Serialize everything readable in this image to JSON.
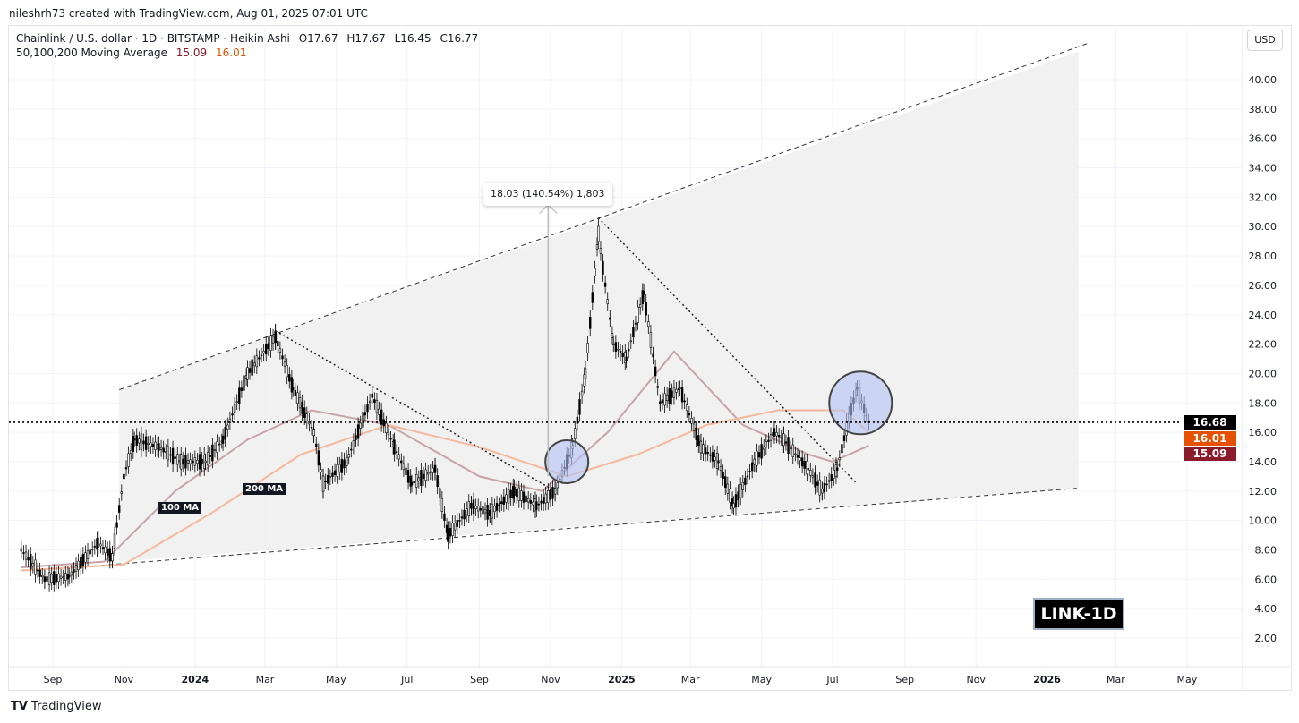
{
  "header": {
    "credit": "nileshrh73 created with TradingView.com, Aug 01, 2025 07:01 UTC",
    "symbol_line": "Chainlink / U.S. dollar · 1D · BITSTAMP · Heikin Ashi",
    "ohlc": {
      "open": "O17.67",
      "high": "H17.67",
      "low": "L16.45",
      "close": "C16.77"
    },
    "indicator_label": "50,100,200 Moving Average",
    "ma_values": [
      "15.09",
      "16.01"
    ],
    "currency_button": "USD"
  },
  "price_labels": {
    "last": "16.68",
    "ma200": "16.01",
    "ma100": "15.09"
  },
  "annotations": {
    "ma100_tag": "100 MA",
    "ma200_tag": "200 MA",
    "measure": "18.03 (140.54%) 1,803",
    "symbol_box": "LINK-1D"
  },
  "footer": {
    "brand": "TradingView"
  },
  "colors": {
    "last_price": "#000000",
    "ma200": "#e65100",
    "ma100": "#8b1a2b",
    "channel_fill": "#f0f0f0",
    "circle_fill": "#b3c3f5"
  },
  "chart_data": {
    "type": "candlestick",
    "title": "Chainlink / U.S. dollar · 1D · BITSTAMP · Heikin Ashi",
    "ylim": [
      0.5,
      43
    ],
    "xlim": [
      "2023-08-05",
      "2026-06-25"
    ],
    "grid": true,
    "y_ticks": [
      "2.00",
      "4.00",
      "6.00",
      "8.00",
      "10.00",
      "12.00",
      "14.00",
      "16.00",
      "18.00",
      "20.00",
      "22.00",
      "24.00",
      "26.00",
      "28.00",
      "30.00",
      "32.00",
      "34.00",
      "36.00",
      "38.00",
      "40.00"
    ],
    "x_ticks": [
      {
        "label": "Sep",
        "date": "2023-09-01"
      },
      {
        "label": "Nov",
        "date": "2023-11-01"
      },
      {
        "label": "2024",
        "date": "2024-01-01"
      },
      {
        "label": "Mar",
        "date": "2024-03-01"
      },
      {
        "label": "May",
        "date": "2024-05-01"
      },
      {
        "label": "Jul",
        "date": "2024-07-01"
      },
      {
        "label": "Sep",
        "date": "2024-09-01"
      },
      {
        "label": "Nov",
        "date": "2024-11-01"
      },
      {
        "label": "2025",
        "date": "2025-01-01"
      },
      {
        "label": "Mar",
        "date": "2025-03-01"
      },
      {
        "label": "May",
        "date": "2025-05-01"
      },
      {
        "label": "Jul",
        "date": "2025-07-01"
      },
      {
        "label": "Sep",
        "date": "2025-09-01"
      },
      {
        "label": "Nov",
        "date": "2025-11-01"
      },
      {
        "label": "2026",
        "date": "2026-01-01"
      },
      {
        "label": "Mar",
        "date": "2026-03-01"
      },
      {
        "label": "May",
        "date": "2026-05-01"
      }
    ],
    "price": [
      [
        "2023-08-05",
        8.0
      ],
      [
        "2023-08-25",
        6.0
      ],
      [
        "2023-09-15",
        6.2
      ],
      [
        "2023-10-10",
        8.5
      ],
      [
        "2023-10-22",
        7.5
      ],
      [
        "2023-11-01",
        13.0
      ],
      [
        "2023-11-10",
        15.5
      ],
      [
        "2023-12-01",
        15.0
      ],
      [
        "2023-12-20",
        14.0
      ],
      [
        "2024-01-10",
        14.0
      ],
      [
        "2024-01-25",
        15.5
      ],
      [
        "2024-02-15",
        20.0
      ],
      [
        "2024-03-10",
        22.5
      ],
      [
        "2024-03-25",
        19.0
      ],
      [
        "2024-04-12",
        16.0
      ],
      [
        "2024-04-20",
        12.5
      ],
      [
        "2024-05-10",
        14.0
      ],
      [
        "2024-06-01",
        18.5
      ],
      [
        "2024-06-20",
        15.0
      ],
      [
        "2024-07-05",
        12.5
      ],
      [
        "2024-07-25",
        13.5
      ],
      [
        "2024-08-05",
        9.0
      ],
      [
        "2024-08-25",
        11.0
      ],
      [
        "2024-09-10",
        10.5
      ],
      [
        "2024-10-01",
        12.0
      ],
      [
        "2024-10-20",
        11.0
      ],
      [
        "2024-11-05",
        12.0
      ],
      [
        "2024-11-20",
        15.0
      ],
      [
        "2024-12-01",
        20.0
      ],
      [
        "2024-12-12",
        29.5
      ],
      [
        "2024-12-25",
        22.0
      ],
      [
        "2025-01-05",
        21.0
      ],
      [
        "2025-01-20",
        25.5
      ],
      [
        "2025-02-03",
        18.0
      ],
      [
        "2025-02-20",
        19.0
      ],
      [
        "2025-03-10",
        15.0
      ],
      [
        "2025-03-25",
        14.0
      ],
      [
        "2025-04-07",
        11.0
      ],
      [
        "2025-04-25",
        14.0
      ],
      [
        "2025-05-12",
        16.0
      ],
      [
        "2025-05-20",
        15.5
      ],
      [
        "2025-06-10",
        13.5
      ],
      [
        "2025-06-22",
        12.0
      ],
      [
        "2025-07-05",
        13.5
      ],
      [
        "2025-07-15",
        17.0
      ],
      [
        "2025-07-22",
        19.0
      ],
      [
        "2025-08-01",
        16.7
      ]
    ],
    "series": [
      {
        "name": "100 MA",
        "color": "#c9a3a8",
        "values": [
          [
            "2023-08-05",
            6.8
          ],
          [
            "2023-10-15",
            7.2
          ],
          [
            "2023-12-15",
            12.0
          ],
          [
            "2024-02-15",
            15.5
          ],
          [
            "2024-04-10",
            17.5
          ],
          [
            "2024-06-15",
            16.5
          ],
          [
            "2024-09-01",
            13.0
          ],
          [
            "2024-10-25",
            12.0
          ],
          [
            "2024-12-20",
            16.0
          ],
          [
            "2025-02-15",
            21.5
          ],
          [
            "2025-04-15",
            16.5
          ],
          [
            "2025-06-10",
            14.5
          ],
          [
            "2025-07-01",
            14.0
          ],
          [
            "2025-08-01",
            15.09
          ]
        ]
      },
      {
        "name": "200 MA",
        "color": "#f5b89a",
        "values": [
          [
            "2023-08-05",
            6.6
          ],
          [
            "2023-11-01",
            7.0
          ],
          [
            "2024-01-15",
            10.5
          ],
          [
            "2024-04-01",
            14.5
          ],
          [
            "2024-06-15",
            16.5
          ],
          [
            "2024-09-01",
            15.0
          ],
          [
            "2024-11-15",
            13.0
          ],
          [
            "2025-01-15",
            14.5
          ],
          [
            "2025-03-15",
            16.5
          ],
          [
            "2025-05-15",
            17.5
          ],
          [
            "2025-07-10",
            17.5
          ],
          [
            "2025-08-01",
            16.01
          ]
        ]
      }
    ],
    "channel": {
      "upper": [
        [
          "2023-10-28",
          18.9
        ],
        [
          "2026-02-06",
          42.5
        ]
      ],
      "lower": [
        [
          "2023-10-28",
          7.2
        ],
        [
          "2026-01-28",
          12.2
        ]
      ]
    },
    "trendlines": [
      [
        [
          "2024-03-10",
          22.9
        ],
        [
          "2024-11-05",
          12.0
        ]
      ],
      [
        [
          "2024-12-12",
          30.6
        ],
        [
          "2025-07-22",
          12.5
        ]
      ]
    ],
    "circles": [
      {
        "date": "2024-11-15",
        "price": 14.0
      },
      {
        "date": "2025-07-25",
        "price": 18.0
      }
    ],
    "measure": {
      "date": "2024-10-30",
      "from": 13.0,
      "to": 31.0
    },
    "last_price": 16.68
  }
}
